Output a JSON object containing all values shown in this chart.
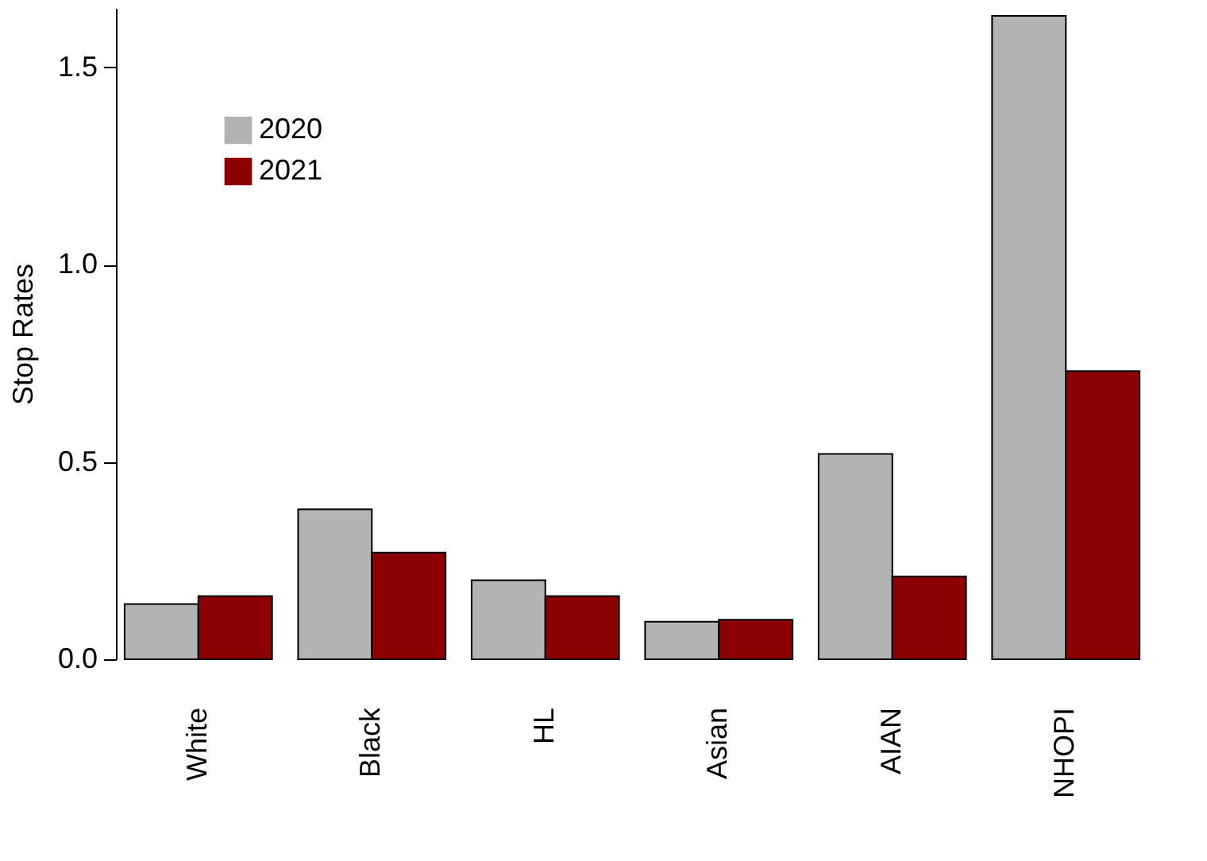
{
  "chart_data": {
    "type": "bar",
    "ylabel": "Stop Rates",
    "categories": [
      "White",
      "Black",
      "HL",
      "Asian",
      "AIAN",
      "NHOPI"
    ],
    "series": [
      {
        "name": "2020",
        "color": "#b3b3b3",
        "values": [
          0.14,
          0.38,
          0.2,
          0.095,
          0.52,
          1.63
        ]
      },
      {
        "name": "2021",
        "color": "#8b0000",
        "values": [
          0.16,
          0.27,
          0.16,
          0.1,
          0.21,
          0.73
        ]
      }
    ],
    "ylim": [
      0,
      1.65
    ],
    "yticks": [
      {
        "value": 0,
        "label": "0.0"
      },
      {
        "value": 0.5,
        "label": "0.5"
      },
      {
        "value": 1,
        "label": "1.0"
      },
      {
        "value": 1.5,
        "label": "1.5"
      }
    ],
    "grid": false,
    "legend": "top left"
  }
}
